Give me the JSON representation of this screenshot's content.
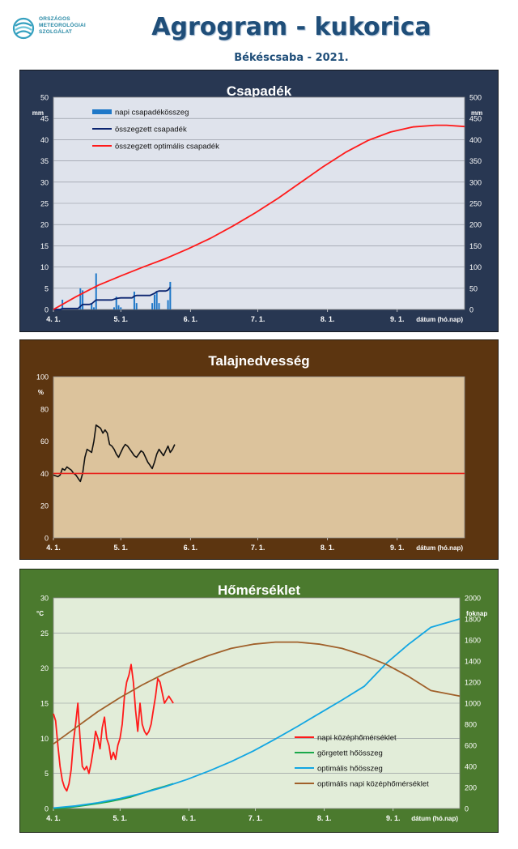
{
  "header": {
    "logo_lines": [
      "ORSZÁGOS",
      "METEOROLÓGIAI",
      "SZOLGÁLAT"
    ],
    "title": "Agrogram - kukorica",
    "subtitle": "Békéscsaba - 2021."
  },
  "x_axis": {
    "label": "dátum (hó.nap)",
    "ticks": [
      "4. 1.",
      "5. 1.",
      "6. 1.",
      "7. 1.",
      "8. 1.",
      "9. 1."
    ]
  },
  "colors": {
    "precip_panel": "#283752",
    "precip_plot": "#dfe3ec",
    "soil_panel": "#5c3510",
    "soil_plot": "#dcc39c",
    "temp_panel": "#4b7a2e",
    "temp_plot": "#e2edd9"
  },
  "chart_data": [
    {
      "type": "bar",
      "title": "Csapadék",
      "ylabel": "mm",
      "ylabel_right": "mm",
      "ylim": [
        0,
        50
      ],
      "ylim_right": [
        0,
        500
      ],
      "yticks": [
        "0",
        "5",
        "10",
        "15",
        "20",
        "25",
        "30",
        "35",
        "40",
        "45",
        "50"
      ],
      "yticks_right": [
        "0",
        "50",
        "100",
        "150",
        "200",
        "250",
        "300",
        "350",
        "400",
        "450",
        "500"
      ],
      "x_domain_days": [
        0,
        183
      ],
      "grid": true,
      "legend_position": "top-left",
      "series": [
        {
          "name": "napi csapadékösszeg",
          "type": "bar",
          "axis": "left",
          "color": "#1f78c8",
          "x": [
            4,
            12,
            13,
            17,
            18,
            19,
            27,
            28,
            29,
            30,
            36,
            37,
            44,
            45,
            46,
            47,
            51,
            52
          ],
          "values": [
            2.3,
            5,
            4.5,
            1.5,
            0.5,
            8.5,
            0.5,
            3,
            1,
            0.5,
            4.2,
            1.5,
            1.5,
            3.5,
            4,
            1.5,
            2.2,
            6.5
          ]
        },
        {
          "name": "összegzett csapadék",
          "type": "line",
          "axis": "right",
          "color": "#0b2470",
          "x": [
            0,
            3,
            4,
            11,
            12,
            13,
            16,
            17,
            19,
            26,
            28,
            29,
            30,
            35,
            36,
            37,
            43,
            45,
            46,
            47,
            50,
            51,
            52
          ],
          "values": [
            0,
            0,
            2.3,
            2.3,
            7.3,
            11.8,
            11.8,
            13.3,
            22.3,
            22.3,
            25.8,
            26.8,
            27.3,
            27.3,
            31.5,
            33,
            33,
            38,
            42,
            43.5,
            43.5,
            45.7,
            52.2
          ]
        },
        {
          "name": "összegzett optimális csapadék",
          "type": "line",
          "axis": "right",
          "color": "#ff1a1a",
          "x": [
            0,
            10,
            20,
            30,
            40,
            50,
            60,
            70,
            80,
            90,
            100,
            110,
            120,
            130,
            140,
            150,
            160,
            170,
            175,
            183
          ],
          "values": [
            0,
            30,
            57,
            79,
            100,
            120,
            143,
            168,
            197,
            228,
            262,
            299,
            336,
            370,
            398,
            418,
            430,
            434,
            434,
            431
          ]
        }
      ]
    },
    {
      "type": "line",
      "title": "Talajnedvesség",
      "ylabel": "%",
      "ylim": [
        0,
        100
      ],
      "yticks": [
        "0",
        "20",
        "40",
        "60",
        "80",
        "100"
      ],
      "x_domain_days": [
        0,
        183
      ],
      "grid": false,
      "series": [
        {
          "type": "line",
          "color": "#111111",
          "x": [
            0,
            1,
            2,
            3,
            4,
            5,
            6,
            7,
            8,
            9,
            10,
            11,
            12,
            13,
            14,
            15,
            16,
            17,
            18,
            19,
            20,
            21,
            22,
            23,
            24,
            25,
            26,
            27,
            28,
            29,
            30,
            31,
            32,
            33,
            34,
            35,
            36,
            37,
            38,
            39,
            40,
            41,
            42,
            43,
            44,
            45,
            46,
            47,
            48,
            49,
            50,
            51,
            52,
            53,
            54
          ],
          "values": [
            39,
            38.5,
            38,
            39,
            43,
            42,
            44,
            43,
            42,
            40,
            39,
            37,
            35,
            40,
            50,
            55,
            54,
            53,
            60,
            70,
            69,
            68,
            65,
            67,
            65,
            58,
            57,
            55,
            52,
            50,
            53,
            56,
            58,
            57,
            55,
            53,
            51,
            50,
            52,
            54,
            53,
            50,
            47,
            45,
            43,
            47,
            52,
            55,
            53,
            51,
            54,
            57,
            53,
            55,
            58
          ]
        },
        {
          "type": "line",
          "color": "#e8231c",
          "x": [
            0,
            183
          ],
          "values": [
            40,
            40
          ]
        }
      ]
    },
    {
      "type": "line",
      "title": "Hőmérséklet",
      "ylabel": "°C",
      "ylabel_right": "foknap",
      "ylim": [
        0,
        30
      ],
      "ylim_right": [
        0,
        2000
      ],
      "yticks": [
        "0",
        "5",
        "10",
        "15",
        "20",
        "25",
        "30"
      ],
      "yticks_right": [
        "0",
        "200",
        "400",
        "600",
        "800",
        "1000",
        "1200",
        "1400",
        "1600",
        "1800",
        "2000"
      ],
      "x_domain_days": [
        0,
        183
      ],
      "grid": true,
      "legend_position": "bottom-right",
      "series": [
        {
          "name": "napi középhőmérséklet",
          "type": "line",
          "axis": "left",
          "color": "#ff1a1a",
          "x": [
            0,
            1,
            2,
            3,
            4,
            5,
            6,
            7,
            8,
            9,
            10,
            11,
            12,
            13,
            14,
            15,
            16,
            17,
            18,
            19,
            20,
            21,
            22,
            23,
            24,
            25,
            26,
            27,
            28,
            29,
            30,
            31,
            32,
            33,
            34,
            35,
            36,
            37,
            38,
            39,
            40,
            41,
            42,
            43,
            44,
            45,
            46,
            47,
            48,
            49,
            50,
            51,
            52,
            53,
            54
          ],
          "values": [
            13.5,
            12.5,
            9,
            6,
            4,
            3,
            2.5,
            3.5,
            5.5,
            9.5,
            12,
            15,
            10,
            6,
            5.5,
            6,
            5,
            6.5,
            8.5,
            11,
            10,
            8.5,
            11.5,
            13,
            10,
            9,
            7,
            8,
            7,
            9,
            10,
            12,
            16,
            18,
            19,
            20.5,
            18,
            14,
            11,
            15,
            12,
            11,
            10.5,
            11,
            12,
            14,
            16,
            18.5,
            18,
            16.5,
            15,
            15.5,
            16,
            15.5,
            15
          ]
        },
        {
          "name": "görgetett hőösszeg",
          "type": "line",
          "axis": "right",
          "color": "#1aa84a",
          "x": [
            0,
            5,
            10,
            15,
            20,
            25,
            30,
            35,
            40,
            45,
            50,
            54
          ],
          "values": [
            0,
            5,
            18,
            32,
            48,
            65,
            85,
            110,
            145,
            180,
            210,
            235
          ]
        },
        {
          "name": "optimális hőösszeg",
          "type": "line",
          "axis": "right",
          "color": "#12a6e2",
          "x": [
            0,
            10,
            20,
            30,
            40,
            50,
            60,
            70,
            80,
            90,
            100,
            110,
            120,
            130,
            140,
            150,
            160,
            170,
            183
          ],
          "values": [
            5,
            25,
            55,
            95,
            145,
            205,
            275,
            355,
            445,
            545,
            660,
            780,
            905,
            1030,
            1160,
            1380,
            1560,
            1720,
            1800
          ]
        },
        {
          "name": "optimális napi középhőmérséklet",
          "type": "line",
          "axis": "left",
          "color": "#a0602a",
          "x": [
            0,
            10,
            20,
            30,
            40,
            50,
            60,
            70,
            80,
            90,
            100,
            110,
            120,
            130,
            140,
            150,
            160,
            170,
            183
          ],
          "values": [
            9.2,
            11.5,
            13.8,
            15.8,
            17.6,
            19.2,
            20.6,
            21.8,
            22.8,
            23.4,
            23.7,
            23.7,
            23.4,
            22.8,
            21.8,
            20.5,
            18.8,
            16.8,
            16.0
          ]
        }
      ]
    }
  ]
}
